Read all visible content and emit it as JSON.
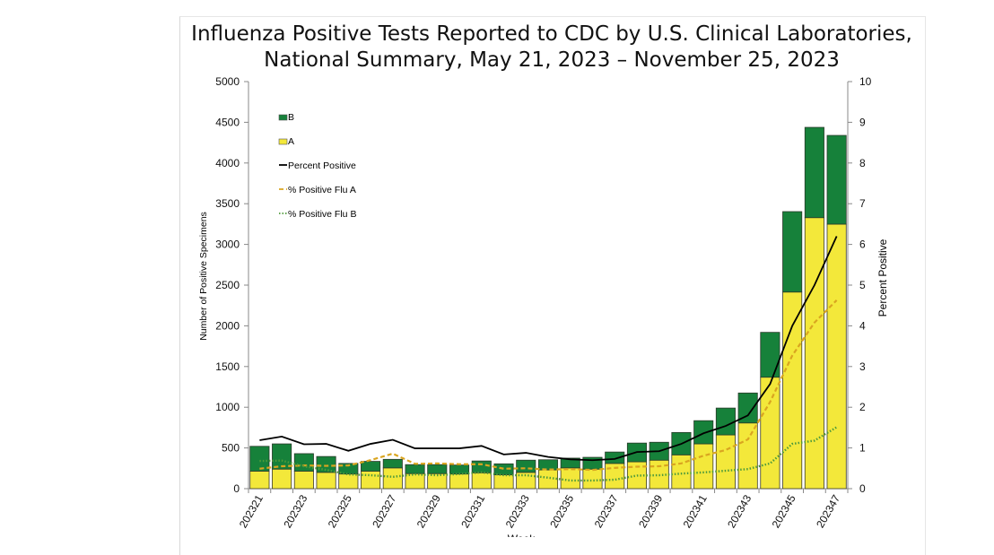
{
  "chart_data": {
    "type": "bar",
    "title": [
      "Influenza Positive Tests Reported to CDC by U.S. Clinical Laboratories,",
      "National Summary, May 21, 2023 – November 25, 2023"
    ],
    "xlabel": "Week",
    "ylabel": "Number of Positive Specimens",
    "y2label": "Percent Positive",
    "ylim": [
      0,
      5000
    ],
    "y2lim": [
      0,
      10
    ],
    "yticks": [
      0,
      500,
      1000,
      1500,
      2000,
      2500,
      3000,
      3500,
      4000,
      4500,
      5000
    ],
    "y2ticks": [
      0,
      1,
      2,
      3,
      4,
      5,
      6,
      7,
      8,
      9,
      10
    ],
    "categories": [
      "202321",
      "202322",
      "202323",
      "202324",
      "202325",
      "202326",
      "202327",
      "202328",
      "202329",
      "202330",
      "202331",
      "202332",
      "202333",
      "202334",
      "202335",
      "202336",
      "202337",
      "202338",
      "202339",
      "202340",
      "202341",
      "202342",
      "202343",
      "202344",
      "202345",
      "202346",
      "202347"
    ],
    "xtick_labels": [
      "202321",
      "202323",
      "202325",
      "202327",
      "202329",
      "202331",
      "202333",
      "202335",
      "202337",
      "202339",
      "202341",
      "202343",
      "202345",
      "202347"
    ],
    "legend_position": "top-left",
    "stacked_series": [
      {
        "name": "A",
        "color": "#f3e83a",
        "values": [
          215,
          240,
          215,
          200,
          180,
          215,
          255,
          185,
          185,
          180,
          195,
          170,
          200,
          230,
          255,
          240,
          310,
          330,
          350,
          415,
          550,
          660,
          807,
          1369,
          2415,
          3329,
          3249
        ]
      },
      {
        "name": "B",
        "color": "#16813a",
        "values": [
          305,
          310,
          215,
          195,
          130,
          120,
          105,
          110,
          110,
          110,
          145,
          135,
          150,
          125,
          120,
          145,
          140,
          230,
          220,
          275,
          285,
          330,
          368,
          551,
          988,
          1109,
          1090
        ]
      }
    ],
    "line_series": [
      {
        "name": "Percent Positive",
        "axis": "right",
        "color": "#000000",
        "style": "solid",
        "values": [
          1.19,
          1.28,
          1.09,
          1.1,
          0.93,
          1.1,
          1.2,
          0.99,
          0.99,
          0.99,
          1.05,
          0.84,
          0.88,
          0.78,
          0.72,
          0.7,
          0.73,
          0.9,
          0.92,
          1.1,
          1.36,
          1.54,
          1.8,
          2.57,
          4.0,
          5.0,
          6.2
        ]
      },
      {
        "name": "% Positive Flu A",
        "axis": "right",
        "color": "#d9a520",
        "style": "dashed",
        "values": [
          0.49,
          0.55,
          0.57,
          0.56,
          0.57,
          0.7,
          0.86,
          0.61,
          0.62,
          0.6,
          0.6,
          0.49,
          0.5,
          0.47,
          0.48,
          0.46,
          0.51,
          0.54,
          0.55,
          0.62,
          0.81,
          0.95,
          1.21,
          2.13,
          3.27,
          4.08,
          4.63
        ]
      },
      {
        "name": "% Positive Flu B",
        "axis": "right",
        "color": "#4f9a3a",
        "style": "dotted",
        "values": [
          0.68,
          0.69,
          0.55,
          0.46,
          0.35,
          0.33,
          0.29,
          0.35,
          0.33,
          0.36,
          0.4,
          0.33,
          0.33,
          0.27,
          0.2,
          0.2,
          0.22,
          0.32,
          0.33,
          0.37,
          0.4,
          0.44,
          0.48,
          0.62,
          1.1,
          1.18,
          1.51
        ]
      }
    ],
    "grid": false
  }
}
